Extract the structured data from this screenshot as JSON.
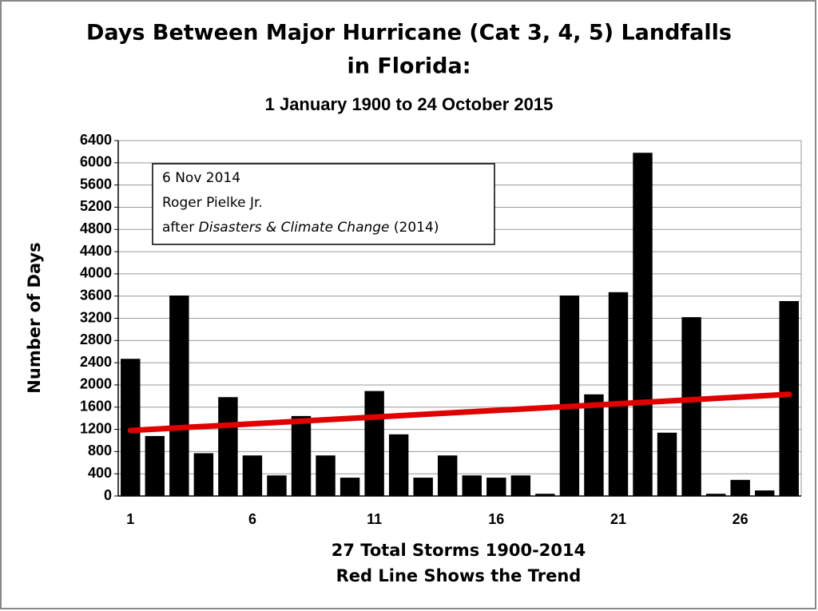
{
  "chart_data": {
    "type": "bar",
    "title": [
      "Days Between Major Hurricane (Cat 3, 4, 5) Landfalls",
      "in Florida:"
    ],
    "subtitle": "1 January 1900 to 24 October 2015",
    "xlabel": [
      "27 Total Storms 1900-2014",
      "Red Line Shows the Trend"
    ],
    "ylabel": "Number of Days",
    "annotation": [
      "6 Nov 2014",
      "Roger Pielke Jr.",
      [
        "after ",
        "Disasters & Climate Change",
        " (2014)"
      ]
    ],
    "categories": [
      "1",
      null,
      null,
      null,
      null,
      "6",
      null,
      null,
      null,
      null,
      "11",
      null,
      null,
      null,
      null,
      "16",
      null,
      null,
      null,
      null,
      "21",
      null,
      null,
      null,
      null,
      "26",
      null,
      null
    ],
    "values": [
      2470,
      1080,
      3610,
      770,
      1780,
      730,
      370,
      1440,
      730,
      330,
      1890,
      1110,
      330,
      730,
      370,
      330,
      370,
      40,
      3610,
      1830,
      3670,
      6180,
      1140,
      3220,
      40,
      290,
      100,
      3510
    ],
    "color": "#000000",
    "trend": {
      "x": [
        1,
        28
      ],
      "values": [
        1180,
        1830
      ],
      "color": "#e00000"
    },
    "ylim": [
      0,
      6400
    ],
    "yticks": [
      0,
      400,
      800,
      1200,
      1600,
      2000,
      2400,
      2800,
      3200,
      3600,
      4000,
      4400,
      4800,
      5200,
      5600,
      6000,
      6400
    ],
    "grid": true
  }
}
